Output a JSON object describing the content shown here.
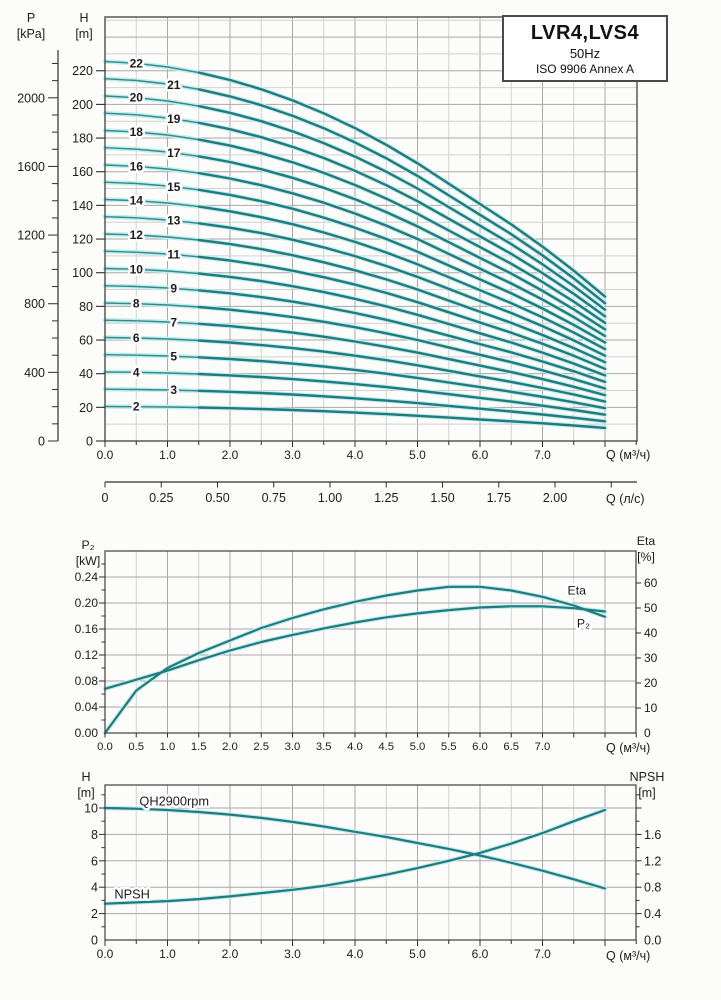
{
  "title_box": {
    "model": "LVR4,LVS4",
    "frequency": "50Hz",
    "standard": "ISO 9906 Annex A"
  },
  "colors": {
    "curve_core": "#1e7c7e",
    "curve_thin": "#2e8c8d",
    "curve_halo": "#c6ecec",
    "grid_minor": "#d2d2d2",
    "grid_major": "#a8a8a8",
    "frame": "#4d4d4d",
    "axis": "#2e2e2e",
    "text": "#1c1c1c"
  },
  "chart_data": [
    {
      "name": "head-capacity",
      "type": "line",
      "x_axis": {
        "label": "Q (м³/ч)",
        "tick_labels": [
          "0.0",
          "1.0",
          "2.0",
          "3.0",
          "4.0",
          "5.0",
          "6.0",
          "7.0"
        ],
        "minor_tick_step": 0.5,
        "range": [
          0,
          8.5
        ]
      },
      "x_axis_secondary": {
        "label": "Q (л/с)",
        "tick_labels": [
          "0",
          "0.25",
          "0.50",
          "0.75",
          "1.00",
          "1.25",
          "1.50",
          "1.75",
          "2.00"
        ],
        "minor_tick_step": 0.25,
        "m3h_per_unit": 3.6,
        "range": [
          0,
          2.25
        ]
      },
      "y_axis": {
        "label_lines": [
          "H",
          "[m]"
        ],
        "tick_labels": [
          "0",
          "20",
          "40",
          "60",
          "80",
          "100",
          "120",
          "140",
          "160",
          "180",
          "200",
          "220"
        ],
        "minor_step": 10,
        "major_step": 20,
        "range": [
          0,
          252
        ]
      },
      "y_axis_outer": {
        "label_lines": [
          "P",
          "[kPa]"
        ],
        "tick_labels": [
          "0",
          "400",
          "800",
          "1200",
          "1600",
          "2000"
        ],
        "minor_step": 100,
        "label_step": 400,
        "range": [
          0,
          2260
        ]
      },
      "stages": [
        2,
        3,
        4,
        5,
        6,
        7,
        8,
        9,
        10,
        11,
        12,
        13,
        14,
        15,
        16,
        17,
        18,
        19,
        20,
        21,
        22
      ],
      "head_rule": "H(Q) = stage × single_stage_head_curve(Q)",
      "single_stage_head_curve": [
        [
          0,
          10.25
        ],
        [
          0.5,
          10.2
        ],
        [
          1,
          10.1
        ],
        [
          1.5,
          9.95
        ],
        [
          2,
          9.75
        ],
        [
          2.5,
          9.5
        ],
        [
          3,
          9.2
        ],
        [
          3.5,
          8.85
        ],
        [
          4,
          8.45
        ],
        [
          4.5,
          8.0
        ],
        [
          5,
          7.5
        ],
        [
          5.5,
          6.95
        ],
        [
          6,
          6.4
        ],
        [
          6.5,
          5.85
        ],
        [
          7,
          5.25
        ],
        [
          7.5,
          4.6
        ],
        [
          8,
          3.9
        ]
      ],
      "bold_flow_range": [
        1.5,
        8.0
      ],
      "stage_label_flow": {
        "even": 0.5,
        "odd": 1.1
      }
    },
    {
      "name": "power-efficiency",
      "type": "line",
      "x_axis": {
        "label": "Q (м³/ч)",
        "tick_labels": [
          "0.0",
          "0.5",
          "1.0",
          "1.5",
          "2.0",
          "2.5",
          "3.0",
          "3.5",
          "4.0",
          "4.5",
          "5.0",
          "5.5",
          "6.0",
          "6.5",
          "7.0"
        ],
        "minor_tick_step": 0.5,
        "range": [
          0,
          8.5
        ]
      },
      "y_axis_left": {
        "label_lines": [
          "P₂",
          "[kW]"
        ],
        "tick_labels": [
          "0.00",
          "0.04",
          "0.08",
          "0.12",
          "0.16",
          "0.20",
          "0.24"
        ],
        "minor_step": 0.02,
        "major_step": 0.04,
        "range": [
          0,
          0.28
        ]
      },
      "y_axis_right": {
        "label_lines": [
          "Eta",
          "[%]"
        ],
        "tick_labels": [
          "0",
          "10",
          "20",
          "30",
          "40",
          "50",
          "60"
        ],
        "major_step": 10,
        "range": [
          0,
          72.8
        ]
      },
      "series": [
        {
          "name": "P₂",
          "axis": "left",
          "label_at": [
            7.55,
            0.162
          ],
          "points": [
            [
              0,
              0.068
            ],
            [
              0.5,
              0.082
            ],
            [
              1,
              0.096
            ],
            [
              1.5,
              0.112
            ],
            [
              2,
              0.127
            ],
            [
              2.5,
              0.14
            ],
            [
              3,
              0.151
            ],
            [
              3.5,
              0.161
            ],
            [
              4,
              0.17
            ],
            [
              4.5,
              0.178
            ],
            [
              5,
              0.184
            ],
            [
              5.5,
              0.189
            ],
            [
              6,
              0.193
            ],
            [
              6.5,
              0.195
            ],
            [
              7,
              0.195
            ],
            [
              7.5,
              0.192
            ],
            [
              8,
              0.187
            ]
          ]
        },
        {
          "name": "Eta",
          "axis": "right",
          "label_at": [
            7.4,
            55.5
          ],
          "points": [
            [
              0,
              0
            ],
            [
              0.5,
              17
            ],
            [
              1,
              26
            ],
            [
              1.5,
              32
            ],
            [
              2,
              37
            ],
            [
              2.5,
              42
            ],
            [
              3,
              46
            ],
            [
              3.5,
              49.5
            ],
            [
              4,
              52.5
            ],
            [
              4.5,
              55
            ],
            [
              5,
              57
            ],
            [
              5.5,
              58.5
            ],
            [
              6,
              58.5
            ],
            [
              6.5,
              57
            ],
            [
              7,
              54.5
            ],
            [
              7.5,
              51
            ],
            [
              8,
              46.5
            ]
          ]
        }
      ]
    },
    {
      "name": "qh-npsh",
      "type": "line",
      "x_axis": {
        "label": "Q (м³/ч)",
        "tick_labels": [
          "0.0",
          "1.0",
          "2.0",
          "3.0",
          "4.0",
          "5.0",
          "6.0",
          "7.0"
        ],
        "minor_tick_step": 0.5,
        "range": [
          0,
          8.5
        ]
      },
      "y_axis_left": {
        "label_lines": [
          "H",
          "[m]"
        ],
        "tick_labels": [
          "0",
          "2",
          "4",
          "6",
          "8",
          "10"
        ],
        "minor_step": 1,
        "major_step": 2,
        "range": [
          0,
          11.7
        ]
      },
      "y_axis_right": {
        "label_lines": [
          "NPSH",
          "[m]"
        ],
        "tick_labels": [
          "0.0",
          "0.4",
          "0.8",
          "1.2",
          "1.6"
        ],
        "minor_step": 0.2,
        "major_step": 0.4,
        "range": [
          0,
          2.34
        ]
      },
      "series": [
        {
          "name": "QH2900rpm",
          "axis": "left",
          "label_at": [
            0.55,
            10.2
          ],
          "points": [
            [
              0,
              10
            ],
            [
              0.5,
              9.95
            ],
            [
              1,
              9.85
            ],
            [
              1.5,
              9.7
            ],
            [
              2,
              9.5
            ],
            [
              2.5,
              9.25
            ],
            [
              3,
              8.95
            ],
            [
              3.5,
              8.6
            ],
            [
              4,
              8.2
            ],
            [
              4.5,
              7.8
            ],
            [
              5,
              7.35
            ],
            [
              5.5,
              6.9
            ],
            [
              6,
              6.4
            ],
            [
              6.5,
              5.85
            ],
            [
              7,
              5.25
            ],
            [
              7.5,
              4.6
            ],
            [
              8,
              3.9
            ]
          ]
        },
        {
          "name": "NPSH",
          "axis": "right",
          "label_at": [
            0.15,
            0.63
          ],
          "points": [
            [
              0,
              0.55
            ],
            [
              0.5,
              0.57
            ],
            [
              1,
              0.59
            ],
            [
              1.5,
              0.62
            ],
            [
              2,
              0.66
            ],
            [
              2.5,
              0.71
            ],
            [
              3,
              0.76
            ],
            [
              3.5,
              0.82
            ],
            [
              4,
              0.9
            ],
            [
              4.5,
              0.99
            ],
            [
              5,
              1.09
            ],
            [
              5.5,
              1.2
            ],
            [
              6,
              1.32
            ],
            [
              6.5,
              1.46
            ],
            [
              7,
              1.62
            ],
            [
              7.5,
              1.8
            ],
            [
              8,
              1.97
            ]
          ]
        }
      ]
    }
  ]
}
